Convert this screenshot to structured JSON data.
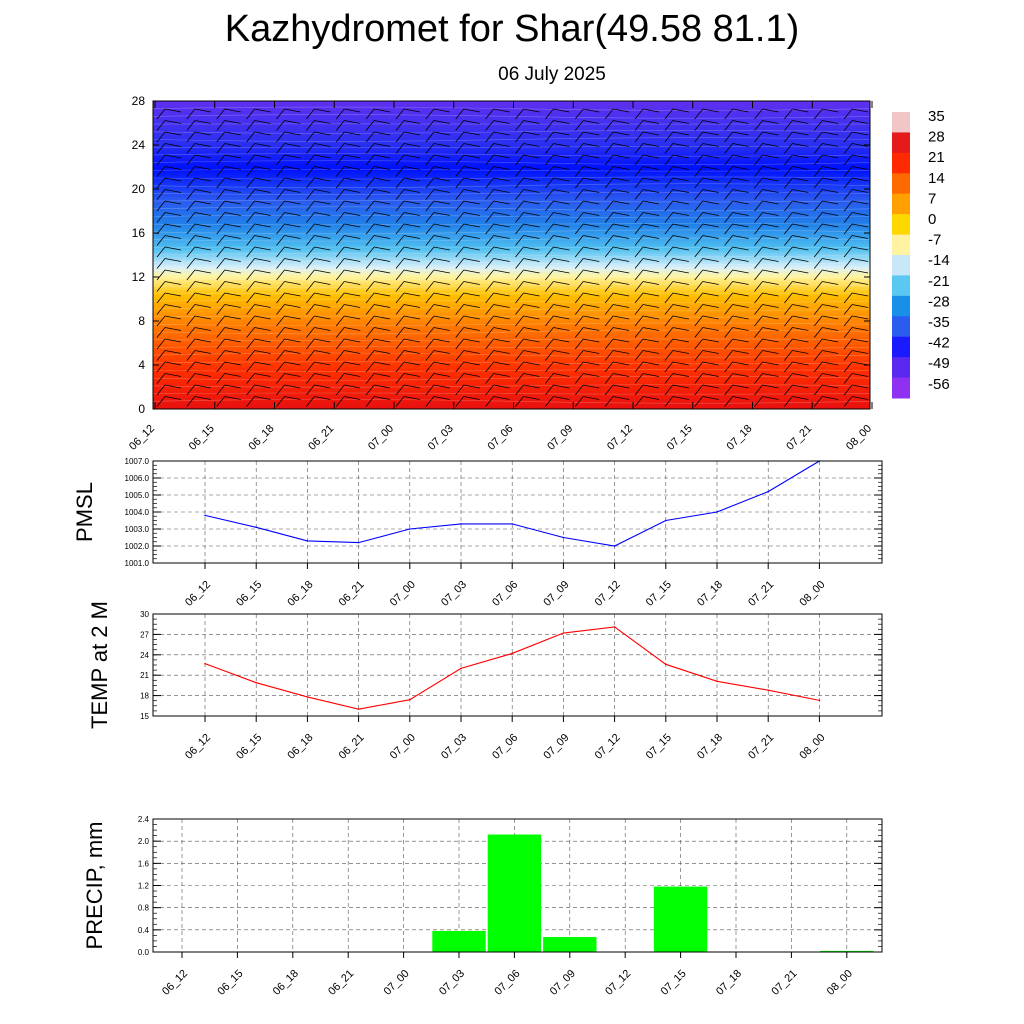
{
  "title": "Kazhydromet for Shar(49.58 81.1)",
  "subtitle": "06 July 2025",
  "time_labels": [
    "06_12",
    "06_15",
    "06_18",
    "06_21",
    "07_00",
    "07_03",
    "07_06",
    "07_09",
    "07_12",
    "07_15",
    "07_18",
    "07_21",
    "08_00"
  ],
  "colorbar": {
    "labels": [
      "35",
      "28",
      "21",
      "14",
      "7",
      "0",
      "-7",
      "-14",
      "-21",
      "-28",
      "-35",
      "-42",
      "-49",
      "-56"
    ],
    "colors": [
      "#f2c6c6",
      "#e61a1a",
      "#ff2a00",
      "#ff6a00",
      "#ffa000",
      "#ffd800",
      "#fff2a0",
      "#c8e8f8",
      "#5ac8f0",
      "#1890e8",
      "#2a5cf0",
      "#1a1aff",
      "#5a28f0",
      "#9030f0"
    ]
  },
  "chart_data": [
    {
      "type": "heatmap",
      "title": "",
      "xlabel": "",
      "ylabel": "",
      "x": [
        "06_12",
        "06_15",
        "06_18",
        "06_21",
        "07_00",
        "07_03",
        "07_06",
        "07_09",
        "07_12",
        "07_15",
        "07_18",
        "07_21",
        "08_00"
      ],
      "y_ticks": [
        0,
        4,
        8,
        12,
        16,
        20,
        24,
        28
      ],
      "ylim": [
        0,
        28
      ],
      "description_of_values": "temperature color field by height; warm (red) near 0, yellow near 12, blue/violet above 16",
      "grid": false
    },
    {
      "type": "line",
      "ylabel": "PMSL",
      "x": [
        "06_12",
        "06_15",
        "06_18",
        "06_21",
        "07_00",
        "07_03",
        "07_06",
        "07_09",
        "07_12",
        "07_15",
        "07_18",
        "07_21",
        "08_00"
      ],
      "series": [
        {
          "values": [
            1003.8,
            1003.1,
            1002.3,
            1002.2,
            1003.0,
            1003.3,
            1003.3,
            1002.5,
            1002.0,
            1003.5,
            1004.0,
            1005.2,
            1007.0
          ],
          "color": "#0000ff"
        }
      ],
      "y_ticks": [
        "1001.0",
        "1002.0",
        "1003.0",
        "1004.0",
        "1005.0",
        "1006.0",
        "1007.0"
      ],
      "ylim": [
        1001.0,
        1007.0
      ],
      "grid": true
    },
    {
      "type": "line",
      "ylabel": "TEMP at 2 M",
      "x": [
        "06_12",
        "06_15",
        "06_18",
        "06_21",
        "07_00",
        "07_03",
        "07_06",
        "07_09",
        "07_12",
        "07_15",
        "07_18",
        "07_21",
        "08_00"
      ],
      "series": [
        {
          "values": [
            22.7,
            19.9,
            17.8,
            16.0,
            17.4,
            22.0,
            24.2,
            27.2,
            28.1,
            22.6,
            20.1,
            18.8,
            17.3
          ],
          "color": "#ff0000"
        }
      ],
      "y_ticks": [
        "15",
        "18",
        "21",
        "24",
        "27",
        "30"
      ],
      "ylim": [
        15,
        30
      ],
      "grid": true
    },
    {
      "type": "bar",
      "ylabel": "PRECIP, mm",
      "categories": [
        "06_12",
        "06_15",
        "06_18",
        "06_21",
        "07_00",
        "07_03",
        "07_06",
        "07_09",
        "07_12",
        "07_15",
        "07_18",
        "07_21",
        "08_00"
      ],
      "values": [
        0,
        0,
        0,
        0,
        0,
        0.38,
        2.12,
        0.27,
        0,
        1.18,
        0,
        0,
        0.02
      ],
      "color": "#00ff00",
      "y_ticks": [
        "0.0",
        "0.4",
        "0.8",
        "1.2",
        "1.6",
        "2.0",
        "2.4"
      ],
      "ylim": [
        0,
        2.4
      ],
      "grid": true
    }
  ]
}
